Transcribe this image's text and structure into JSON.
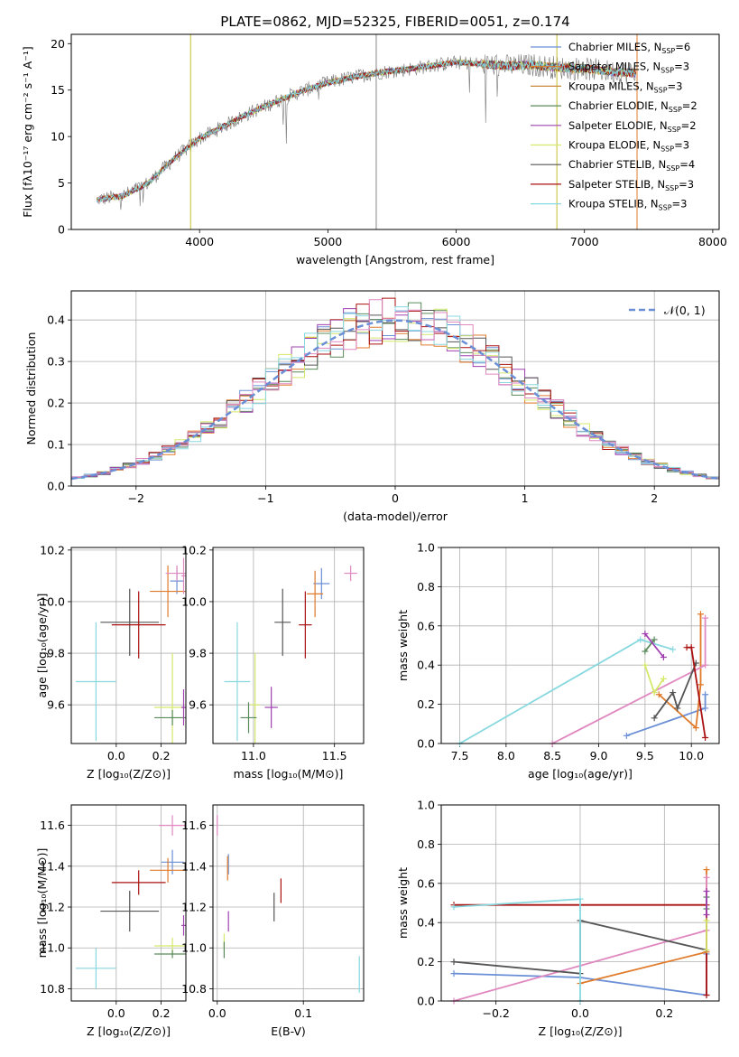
{
  "figure": {
    "title": "PLATE=0862, MJD=52325, FIBERID=0051, z=0.174"
  },
  "colors": [
    "#6a8fd6",
    "#e07b2c",
    "#c8883a",
    "#5a8a5a",
    "#a040b0",
    "#d4e86a",
    "#555555",
    "#aa1111",
    "#88d8e0",
    "#e088c0"
  ],
  "chart_data": [
    {
      "id": "spectrum",
      "type": "line",
      "title": "PLATE=0862, MJD=52325, FIBERID=0051, z=0.174",
      "xlabel": "wavelength [Angstrom, rest frame]",
      "ylabel": "Flux [fλ10⁻¹⁷ erg cm⁻² s⁻¹ A⁻¹]",
      "xlim": [
        3000,
        8050
      ],
      "ylim": [
        0,
        21
      ],
      "xticks": [
        "4000",
        "5000",
        "6000",
        "7000",
        "8000"
      ],
      "yticks": [
        "0",
        "5",
        "10",
        "15",
        "20"
      ],
      "grid": false,
      "legend_position": "top-right",
      "continuum": [
        [
          3200,
          3.2
        ],
        [
          3400,
          3.6
        ],
        [
          3600,
          5.0
        ],
        [
          3800,
          7.6
        ],
        [
          4000,
          9.8
        ],
        [
          4200,
          11.2
        ],
        [
          4400,
          12.6
        ],
        [
          4600,
          13.8
        ],
        [
          4800,
          14.9
        ],
        [
          5000,
          15.8
        ],
        [
          5200,
          16.4
        ],
        [
          5400,
          16.9
        ],
        [
          5600,
          17.2
        ],
        [
          5800,
          17.6
        ],
        [
          6000,
          18.0
        ],
        [
          6200,
          17.8
        ],
        [
          6400,
          17.6
        ],
        [
          6600,
          17.7
        ],
        [
          6800,
          17.4
        ],
        [
          7000,
          17.3
        ],
        [
          7200,
          17.0
        ],
        [
          7400,
          16.8
        ]
      ],
      "series": [
        {
          "name": "Chabrier MILES, N_SSP=6",
          "label": "Chabrier MILES, N",
          "sub": "SSP",
          "suffix": "=6",
          "color_index": 0
        },
        {
          "name": "Salpeter MILES, N_SSP=3",
          "label": "Salpeter MILES, N",
          "sub": "SSP",
          "suffix": "=3",
          "color_index": 1
        },
        {
          "name": "Kroupa MILES, N_SSP=3",
          "label": "Kroupa MILES, N",
          "sub": "SSP",
          "suffix": "=3",
          "color_index": 2
        },
        {
          "name": "Chabrier ELODIE, N_SSP=2",
          "label": "Chabrier ELODIE, N",
          "sub": "SSP",
          "suffix": "=2",
          "color_index": 3
        },
        {
          "name": "Salpeter ELODIE, N_SSP=2",
          "label": "Salpeter ELODIE, N",
          "sub": "SSP",
          "suffix": "=2",
          "color_index": 4
        },
        {
          "name": "Kroupa ELODIE, N_SSP=3",
          "label": "Kroupa ELODIE, N",
          "sub": "SSP",
          "suffix": "=3",
          "color_index": 5
        },
        {
          "name": "Chabrier STELIB, N_SSP=4",
          "label": "Chabrier STELIB, N",
          "sub": "SSP",
          "suffix": "=4",
          "color_index": 6
        },
        {
          "name": "Salpeter STELIB, N_SSP=3",
          "label": "Salpeter STELIB, N",
          "sub": "SSP",
          "suffix": "=3",
          "color_index": 7
        },
        {
          "name": "Kroupa STELIB, N_SSP=3",
          "label": "Kroupa STELIB, N",
          "sub": "SSP",
          "suffix": "=3",
          "color_index": 8
        }
      ]
    },
    {
      "id": "residuals",
      "type": "histogram",
      "xlabel": "(data-model)/error",
      "ylabel": "Normed distribution",
      "xlim": [
        -2.5,
        2.5
      ],
      "ylim": [
        0,
        0.47
      ],
      "xticks": [
        "−2",
        "−1",
        "0",
        "1",
        "2"
      ],
      "yticks": [
        "0.0",
        "0.1",
        "0.2",
        "0.3",
        "0.4"
      ],
      "grid": true,
      "legend_position": "top-right",
      "legend": "𝒩(0, 1)",
      "gaussian": {
        "mean": 0,
        "sigma": 1,
        "color": "#6a8fd6"
      },
      "bin_width": 0.1
    },
    {
      "id": "age_vs_Z",
      "type": "scatter",
      "xlabel": "Z [log₁₀(Z/Z⊙)]",
      "ylabel": "age  [log₁₀(age/yr)]",
      "xlim": [
        -0.2,
        0.31
      ],
      "ylim": [
        9.45,
        10.21
      ],
      "xticks": [
        "0.0",
        "0.2"
      ],
      "yticks": [
        "9.6",
        "9.8",
        "10.0",
        "10.2"
      ],
      "grid": true,
      "points": [
        {
          "x": 0.27,
          "y": 10.08,
          "xerr": 0.03,
          "yerr": 0.05,
          "c": 0
        },
        {
          "x": 0.23,
          "y": 10.04,
          "xerr": 0.08,
          "yerr": 0.1,
          "c": 1
        },
        {
          "x": 0.27,
          "y": 10.11,
          "xerr": 0.05,
          "yerr": 0.03,
          "c": 9
        },
        {
          "x": 0.3,
          "y": 10.1,
          "xerr": 0.01,
          "yerr": 0.07,
          "c": 9
        },
        {
          "x": 0.06,
          "y": 9.92,
          "xerr": 0.13,
          "yerr": 0.13,
          "c": 6
        },
        {
          "x": 0.1,
          "y": 9.91,
          "xerr": 0.12,
          "yerr": 0.13,
          "c": 7
        },
        {
          "x": -0.09,
          "y": 9.69,
          "xerr": 0.09,
          "yerr": 0.23,
          "c": 8
        },
        {
          "x": 0.25,
          "y": 9.59,
          "xerr": 0.08,
          "yerr": 0.21,
          "c": 5
        },
        {
          "x": 0.25,
          "y": 9.55,
          "xerr": 0.08,
          "yerr": 0.03,
          "c": 3
        },
        {
          "x": 0.3,
          "y": 9.59,
          "xerr": 0.01,
          "yerr": 0.07,
          "c": 4
        }
      ]
    },
    {
      "id": "age_vs_mass",
      "type": "scatter",
      "xlabel": "mass [log₁₀(M/M⊙)]",
      "ylabel": "",
      "xlim": [
        10.75,
        11.68
      ],
      "ylim": [
        9.45,
        10.21
      ],
      "xticks": [
        "11.0",
        "11.5"
      ],
      "yticks": [
        "9.6",
        "9.8",
        "10.0",
        "10.2"
      ],
      "grid": true,
      "points": [
        {
          "x": 11.42,
          "y": 10.07,
          "xerr": 0.05,
          "yerr": 0.06,
          "c": 0
        },
        {
          "x": 11.38,
          "y": 10.03,
          "xerr": 0.05,
          "yerr": 0.09,
          "c": 1
        },
        {
          "x": 11.6,
          "y": 10.11,
          "xerr": 0.04,
          "yerr": 0.03,
          "c": 9
        },
        {
          "x": 11.18,
          "y": 9.92,
          "xerr": 0.05,
          "yerr": 0.13,
          "c": 6
        },
        {
          "x": 11.32,
          "y": 9.91,
          "xerr": 0.04,
          "yerr": 0.13,
          "c": 7
        },
        {
          "x": 10.9,
          "y": 9.69,
          "xerr": 0.08,
          "yerr": 0.23,
          "c": 8
        },
        {
          "x": 11.01,
          "y": 9.6,
          "xerr": 0.03,
          "yerr": 0.2,
          "c": 5
        },
        {
          "x": 10.97,
          "y": 9.55,
          "xerr": 0.05,
          "yerr": 0.06,
          "c": 3
        },
        {
          "x": 11.11,
          "y": 9.59,
          "xerr": 0.04,
          "yerr": 0.08,
          "c": 4
        }
      ]
    },
    {
      "id": "weight_vs_age",
      "type": "line",
      "xlabel": "age  [log₁₀(age/yr)]",
      "ylabel": "mass weight",
      "xlim": [
        7.3,
        10.3
      ],
      "ylim": [
        0,
        1
      ],
      "xticks": [
        "7.5",
        "8.0",
        "8.5",
        "9.0",
        "9.5",
        "10.0"
      ],
      "yticks": [
        "0.0",
        "0.2",
        "0.4",
        "0.6",
        "0.8",
        "1.0"
      ],
      "grid": true,
      "series": [
        {
          "c": 0,
          "x": [
            9.3,
            10.15,
            10.15
          ],
          "y": [
            0.04,
            0.18,
            0.25
          ]
        },
        {
          "c": 1,
          "x": [
            9.65,
            10.05,
            10.1,
            10.1
          ],
          "y": [
            0.25,
            0.08,
            0.3,
            0.66
          ]
        },
        {
          "c": 9,
          "x": [
            8.5,
            10.15,
            10.15
          ],
          "y": [
            0.0,
            0.4,
            0.64
          ]
        },
        {
          "c": 6,
          "x": [
            9.6,
            9.8,
            9.85,
            10.05
          ],
          "y": [
            0.13,
            0.26,
            0.18,
            0.41
          ]
        },
        {
          "c": 7,
          "x": [
            9.95,
            10.0,
            10.15
          ],
          "y": [
            0.49,
            0.49,
            0.03
          ]
        },
        {
          "c": 8,
          "x": [
            7.5,
            9.45,
            9.8
          ],
          "y": [
            0.0,
            0.53,
            0.48
          ]
        },
        {
          "c": 5,
          "x": [
            9.5,
            9.6,
            9.7
          ],
          "y": [
            0.4,
            0.26,
            0.33
          ]
        },
        {
          "c": 3,
          "x": [
            9.5,
            9.6
          ],
          "y": [
            0.47,
            0.53
          ]
        },
        {
          "c": 4,
          "x": [
            9.5,
            9.7
          ],
          "y": [
            0.56,
            0.44
          ]
        }
      ]
    },
    {
      "id": "mass_vs_Z",
      "type": "scatter",
      "xlabel": "Z [log₁₀(Z/Z⊙)]",
      "ylabel": "mass [log₁₀(M/M⊙)]",
      "xlim": [
        -0.2,
        0.31
      ],
      "ylim": [
        10.74,
        11.7
      ],
      "xticks": [
        "0.0",
        "0.2"
      ],
      "yticks": [
        "10.8",
        "11.0",
        "11.2",
        "11.4",
        "11.6"
      ],
      "grid": true,
      "points": [
        {
          "x": 0.25,
          "y": 11.42,
          "xerr": 0.05,
          "yerr": 0.06,
          "c": 0
        },
        {
          "x": 0.23,
          "y": 11.38,
          "xerr": 0.08,
          "yerr": 0.06,
          "c": 1
        },
        {
          "x": 0.25,
          "y": 11.6,
          "xerr": 0.06,
          "yerr": 0.05,
          "c": 9
        },
        {
          "x": 0.06,
          "y": 11.18,
          "xerr": 0.13,
          "yerr": 0.1,
          "c": 6
        },
        {
          "x": 0.1,
          "y": 11.32,
          "xerr": 0.12,
          "yerr": 0.06,
          "c": 7
        },
        {
          "x": -0.09,
          "y": 10.9,
          "xerr": 0.09,
          "yerr": 0.1,
          "c": 8
        },
        {
          "x": 0.25,
          "y": 11.01,
          "xerr": 0.08,
          "yerr": 0.04,
          "c": 5
        },
        {
          "x": 0.25,
          "y": 10.97,
          "xerr": 0.08,
          "yerr": 0.02,
          "c": 3
        },
        {
          "x": 0.3,
          "y": 11.11,
          "xerr": 0.01,
          "yerr": 0.05,
          "c": 4
        }
      ]
    },
    {
      "id": "mass_vs_ebv",
      "type": "scatter",
      "xlabel": "E(B-V)",
      "ylabel": "",
      "xlim": [
        -0.005,
        0.17
      ],
      "ylim": [
        10.74,
        11.7
      ],
      "xticks": [
        "0.0",
        "0.1"
      ],
      "yticks": [
        "10.8",
        "11.0",
        "11.2",
        "11.4",
        "11.6"
      ],
      "grid": true,
      "points": [
        {
          "x": 0.013,
          "y": 11.41,
          "xerr": 0,
          "yerr": 0.05,
          "c": 0
        },
        {
          "x": 0.012,
          "y": 11.39,
          "xerr": 0,
          "yerr": 0.06,
          "c": 1
        },
        {
          "x": 0.0,
          "y": 11.6,
          "xerr": 0,
          "yerr": 0.05,
          "c": 9
        },
        {
          "x": 0.066,
          "y": 11.2,
          "xerr": 0,
          "yerr": 0.07,
          "c": 6
        },
        {
          "x": 0.074,
          "y": 11.28,
          "xerr": 0,
          "yerr": 0.06,
          "c": 7
        },
        {
          "x": 0.165,
          "y": 10.87,
          "xerr": 0,
          "yerr": 0.09,
          "c": 8
        },
        {
          "x": 0.008,
          "y": 11.03,
          "xerr": 0,
          "yerr": 0.04,
          "c": 5
        },
        {
          "x": 0.008,
          "y": 10.99,
          "xerr": 0,
          "yerr": 0.04,
          "c": 3
        },
        {
          "x": 0.013,
          "y": 11.13,
          "xerr": 0,
          "yerr": 0.05,
          "c": 4
        }
      ]
    },
    {
      "id": "weight_vs_Z",
      "type": "line",
      "xlabel": "Z [log₁₀(Z/Z⊙)]",
      "ylabel": "mass weight",
      "xlim": [
        -0.33,
        0.33
      ],
      "ylim": [
        0,
        1
      ],
      "xticks": [
        "−0.2",
        "0.0",
        "0.2"
      ],
      "yticks": [
        "0.0",
        "0.2",
        "0.4",
        "0.6",
        "0.8",
        "1.0"
      ],
      "grid": true,
      "series": [
        {
          "c": 0,
          "x": [
            -0.3,
            0.0,
            0.3,
            0.3
          ],
          "y": [
            0.14,
            0.12,
            0.03,
            0.24
          ]
        },
        {
          "c": 1,
          "x": [
            0.0,
            0.3,
            0.3
          ],
          "y": [
            0.09,
            0.25,
            0.67
          ]
        },
        {
          "c": 9,
          "x": [
            -0.3,
            0.3,
            0.3
          ],
          "y": [
            0.0,
            0.36,
            0.63
          ]
        },
        {
          "c": 6,
          "x": [
            -0.3,
            0.0,
            0.0,
            0.3
          ],
          "y": [
            0.2,
            0.14,
            0.41,
            0.26
          ]
        },
        {
          "c": 7,
          "x": [
            -0.3,
            0.3,
            0.3
          ],
          "y": [
            0.49,
            0.49,
            0.03
          ]
        },
        {
          "c": 8,
          "x": [
            -0.3,
            0.0,
            0.0
          ],
          "y": [
            0.48,
            0.52,
            0.0
          ]
        },
        {
          "c": 5,
          "x": [
            0.3,
            0.3
          ],
          "y": [
            0.26,
            0.41
          ]
        },
        {
          "c": 3,
          "x": [
            0.3,
            0.3
          ],
          "y": [
            0.47,
            0.53
          ]
        },
        {
          "c": 4,
          "x": [
            0.3,
            0.3
          ],
          "y": [
            0.44,
            0.56
          ]
        }
      ]
    }
  ]
}
